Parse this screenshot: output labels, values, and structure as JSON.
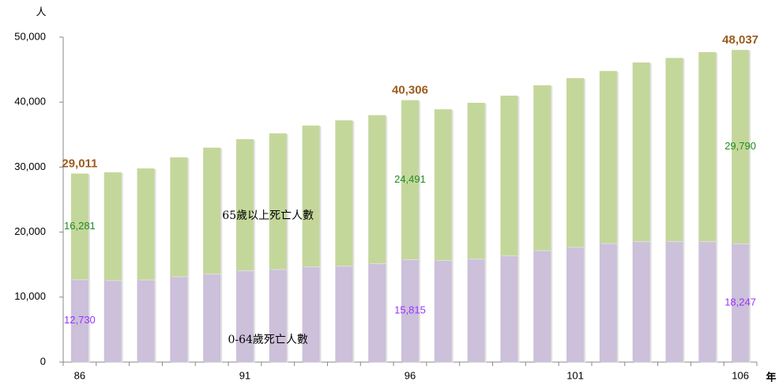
{
  "chart_data": {
    "type": "stacked_bar",
    "y_label": "人",
    "x_label": "年",
    "categories": [
      "86",
      null,
      null,
      null,
      null,
      "91",
      null,
      null,
      null,
      null,
      "96",
      null,
      null,
      null,
      null,
      "101",
      null,
      null,
      null,
      null,
      "106"
    ],
    "series": [
      {
        "name": "0-64歲死亡人數",
        "color": "#ccc0da",
        "label_color": "#9933ff",
        "values": [
          12730,
          12600,
          12700,
          13200,
          13600,
          14100,
          14300,
          14700,
          14800,
          15200,
          15815,
          15700,
          15900,
          16400,
          17200,
          17700,
          18300,
          18600,
          18600,
          18600,
          18247
        ],
        "value_labels": [
          "12,730",
          null,
          null,
          null,
          null,
          null,
          null,
          null,
          null,
          null,
          "15,815",
          null,
          null,
          null,
          null,
          null,
          null,
          null,
          null,
          null,
          "18,247"
        ]
      },
      {
        "name": "65歲以上死亡人數",
        "color": "#c4d79b",
        "label_color": "#228b22",
        "values": [
          16281,
          16600,
          17100,
          18300,
          19400,
          20200,
          20900,
          21700,
          22400,
          22800,
          24491,
          23200,
          24000,
          24600,
          25400,
          26000,
          26500,
          27500,
          28200,
          29100,
          29790
        ],
        "value_labels": [
          "16,281",
          null,
          null,
          null,
          null,
          null,
          null,
          null,
          null,
          null,
          "24,491",
          null,
          null,
          null,
          null,
          null,
          null,
          null,
          null,
          null,
          "29,790"
        ]
      }
    ],
    "annotations": [
      {
        "text": "29,011",
        "at": "86"
      },
      {
        "text": "40,306",
        "at": "96"
      },
      {
        "text": "48,037",
        "at": "106"
      }
    ],
    "annotation_color": "#9c5b1e",
    "ylim": [
      0,
      50000
    ],
    "yticks": [
      0,
      {
        "value": 10000,
        "label": "10,000"
      },
      {
        "value": 20000,
        "label": "20,000"
      },
      {
        "value": 30000,
        "label": "30,000"
      },
      {
        "value": 40000,
        "label": "40,000"
      },
      {
        "value": 50000,
        "label": "50,000"
      }
    ]
  }
}
